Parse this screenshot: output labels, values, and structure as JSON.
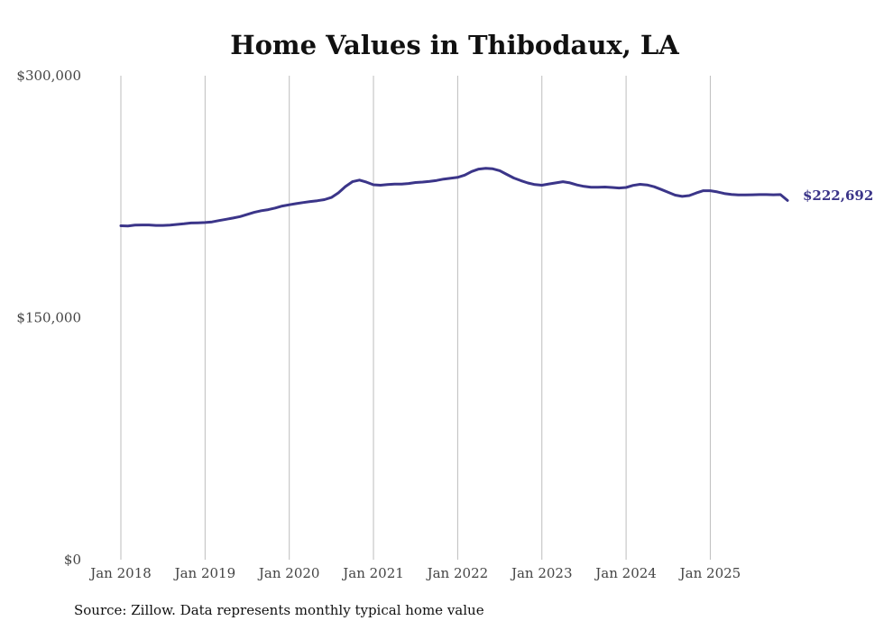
{
  "chart_data": {
    "type": "line",
    "title": "Home Values in Thibodaux, LA",
    "xlabel": "",
    "ylabel": "",
    "ylim": [
      0,
      300000
    ],
    "xlim": [
      "2018-01",
      "2025-12"
    ],
    "y_ticks": [
      {
        "value": 0,
        "label": "$0"
      },
      {
        "value": 150000,
        "label": "$150,000"
      },
      {
        "value": 300000,
        "label": "$300,000"
      }
    ],
    "x_ticks": [
      {
        "value": "2018-01",
        "label": "Jan 2018"
      },
      {
        "value": "2019-01",
        "label": "Jan 2019"
      },
      {
        "value": "2020-01",
        "label": "Jan 2020"
      },
      {
        "value": "2021-01",
        "label": "Jan 2021"
      },
      {
        "value": "2022-01",
        "label": "Jan 2022"
      },
      {
        "value": "2023-01",
        "label": "Jan 2023"
      },
      {
        "value": "2024-01",
        "label": "Jan 2024"
      },
      {
        "value": "2025-01",
        "label": "Jan 2025"
      }
    ],
    "grid": {
      "vertical": true,
      "horizontal": false
    },
    "line_color": "#3b3589",
    "end_label": "$222,692",
    "series": [
      {
        "x": [
          "2018-01",
          "2018-02",
          "2018-03",
          "2018-04",
          "2018-05",
          "2018-06",
          "2018-07",
          "2018-08",
          "2018-09",
          "2018-10",
          "2018-11",
          "2018-12",
          "2019-01",
          "2019-02",
          "2019-03",
          "2019-04",
          "2019-05",
          "2019-06",
          "2019-07",
          "2019-08",
          "2019-09",
          "2019-10",
          "2019-11",
          "2019-12",
          "2020-01",
          "2020-02",
          "2020-03",
          "2020-04",
          "2020-05",
          "2020-06",
          "2020-07",
          "2020-08",
          "2020-09",
          "2020-10",
          "2020-11",
          "2020-12",
          "2021-01",
          "2021-02",
          "2021-03",
          "2021-04",
          "2021-05",
          "2021-06",
          "2021-07",
          "2021-08",
          "2021-09",
          "2021-10",
          "2021-11",
          "2021-12",
          "2022-01",
          "2022-02",
          "2022-03",
          "2022-04",
          "2022-05",
          "2022-06",
          "2022-07",
          "2022-08",
          "2022-09",
          "2022-10",
          "2022-11",
          "2022-12",
          "2023-01",
          "2023-02",
          "2023-03",
          "2023-04",
          "2023-05",
          "2023-06",
          "2023-07",
          "2023-08",
          "2023-09",
          "2023-10",
          "2023-11",
          "2023-12",
          "2024-01",
          "2024-02",
          "2024-03",
          "2024-04",
          "2024-05",
          "2024-06",
          "2024-07",
          "2024-08",
          "2024-09",
          "2024-10",
          "2024-11",
          "2024-12",
          "2025-01",
          "2025-02",
          "2025-03",
          "2025-04",
          "2025-05",
          "2025-06",
          "2025-07",
          "2025-08",
          "2025-09",
          "2025-10",
          "2025-11",
          "2025-12"
        ],
        "values": [
          207000,
          206800,
          207400,
          207500,
          207500,
          207200,
          207200,
          207400,
          207800,
          208200,
          208700,
          208800,
          209000,
          209400,
          210200,
          211000,
          211800,
          212700,
          214000,
          215300,
          216300,
          217000,
          218000,
          219200,
          220000,
          220700,
          221400,
          222000,
          222500,
          223200,
          224500,
          227400,
          231300,
          234300,
          235300,
          234000,
          232400,
          232100,
          232500,
          232800,
          232800,
          233200,
          233800,
          234100,
          234500,
          235100,
          235900,
          236400,
          237000,
          238400,
          240600,
          242100,
          242600,
          242300,
          241100,
          238800,
          236600,
          235000,
          233500,
          232500,
          232100,
          232900,
          233600,
          234300,
          233600,
          232300,
          231400,
          230900,
          230900,
          231000,
          230700,
          230400,
          230700,
          232000,
          232700,
          232300,
          231200,
          229500,
          227700,
          226000,
          225200,
          225700,
          227300,
          228700,
          228700,
          228000,
          227000,
          226400,
          226100,
          226100,
          226200,
          226300,
          226300,
          226200,
          226300,
          222692
        ]
      }
    ]
  },
  "footer": {
    "source": "Source: Zillow. Data represents monthly typical home value"
  }
}
